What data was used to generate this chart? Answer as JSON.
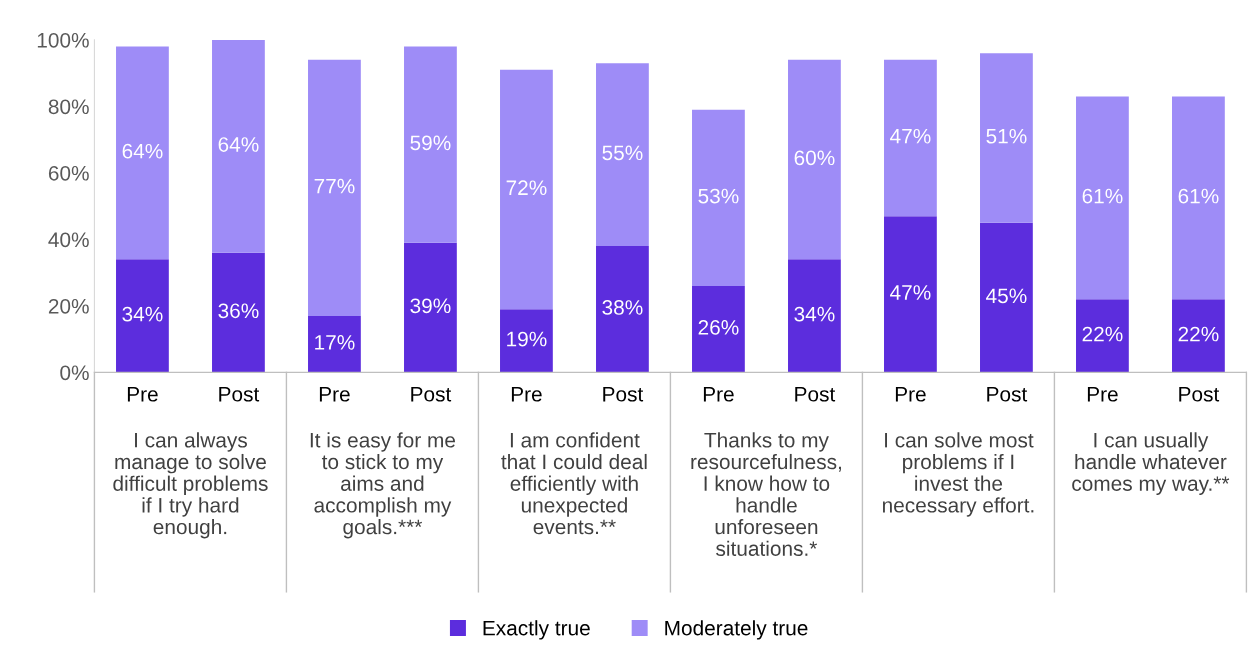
{
  "chart_data": {
    "type": "bar",
    "stacked": true,
    "legend": "bottom",
    "grid": false,
    "categories": [
      "Pre",
      "Post",
      "Pre",
      "Post",
      "Pre",
      "Post",
      "Pre",
      "Post",
      "Pre",
      "Post",
      "Pre",
      "Post"
    ],
    "series": [
      {
        "name": "Exactly true",
        "color": "#5c2ddd",
        "values": [
          34,
          36,
          17,
          39,
          19,
          38,
          26,
          34,
          47,
          45,
          22,
          22
        ],
        "value_labels": [
          "34%",
          "36%",
          "17%",
          "39%",
          "19%",
          "38%",
          "26%",
          "34%",
          "47%",
          "45%",
          "22%",
          "22%"
        ]
      },
      {
        "name": "Moderately true",
        "color": "#9e8cf7",
        "values": [
          64,
          64,
          77,
          59,
          72,
          55,
          53,
          60,
          47,
          51,
          61,
          61
        ],
        "value_labels": [
          "64%",
          "64%",
          "77%",
          "59%",
          "72%",
          "55%",
          "53%",
          "60%",
          "47%",
          "51%",
          "61%",
          "61%"
        ]
      }
    ],
    "annotations": [
      "I can always\nmanage to solve\ndifficult problems\nif I try hard\nenough.",
      "It is easy for me\nto stick to my\naims and\naccomplish my\ngoals.***",
      "I am confident\nthat I could deal\nefficiently with\nunexpected\nevents.**",
      "Thanks to my\nresourcefulness,\nI know how to\nhandle\nunforeseen\nsituations.*",
      "I can solve most\nproblems if I\ninvest the\nnecessary effort.",
      "I can usually\nhandle whatever\ncomes my way.**"
    ],
    "ylim": [
      0,
      100
    ],
    "yticks": [
      {
        "value": 0,
        "label": "0%"
      },
      {
        "value": 20,
        "label": "20%"
      },
      {
        "value": 40,
        "label": "40%"
      },
      {
        "value": 60,
        "label": "60%"
      },
      {
        "value": 80,
        "label": "80%"
      },
      {
        "value": 100,
        "label": "100%"
      }
    ]
  }
}
